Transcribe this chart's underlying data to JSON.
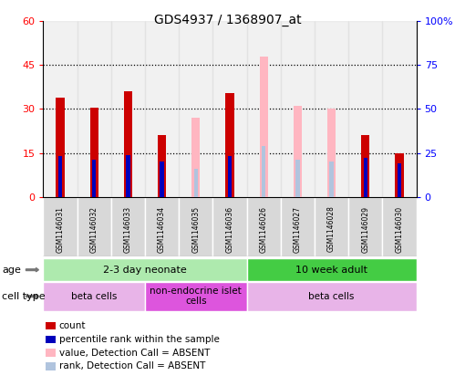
{
  "title": "GDS4937 / 1368907_at",
  "samples": [
    "GSM1146031",
    "GSM1146032",
    "GSM1146033",
    "GSM1146034",
    "GSM1146035",
    "GSM1146036",
    "GSM1146026",
    "GSM1146027",
    "GSM1146028",
    "GSM1146029",
    "GSM1146030"
  ],
  "count_values": [
    34,
    30.5,
    36,
    21,
    0,
    35.5,
    0,
    0,
    0,
    21,
    15
  ],
  "rank_values": [
    23,
    21,
    24,
    20,
    0,
    23,
    0,
    0,
    0,
    22,
    19
  ],
  "absent_value_values": [
    0,
    0,
    0,
    0,
    27,
    0,
    48,
    31,
    30,
    0,
    0
  ],
  "absent_rank_values": [
    0,
    0,
    0,
    0,
    16,
    0,
    29,
    21,
    20,
    0,
    0
  ],
  "ylim_left": [
    0,
    60
  ],
  "ylim_right": [
    0,
    100
  ],
  "yticks_left": [
    0,
    15,
    30,
    45,
    60
  ],
  "yticks_right": [
    0,
    25,
    50,
    75,
    100
  ],
  "ytick_labels_left": [
    "0",
    "15",
    "30",
    "45",
    "60"
  ],
  "ytick_labels_right": [
    "0",
    "25",
    "50",
    "75",
    "100%"
  ],
  "age_groups": [
    {
      "label": "2-3 day neonate",
      "start": 0,
      "end": 6,
      "color": "#aeeaae"
    },
    {
      "label": "10 week adult",
      "start": 6,
      "end": 11,
      "color": "#44cc44"
    }
  ],
  "cell_type_groups": [
    {
      "label": "beta cells",
      "start": 0,
      "end": 3,
      "color": "#e8b4e8"
    },
    {
      "label": "non-endocrine islet\ncells",
      "start": 3,
      "end": 6,
      "color": "#dd55dd"
    },
    {
      "label": "beta cells",
      "start": 6,
      "end": 11,
      "color": "#e8b4e8"
    }
  ],
  "count_color": "#cc0000",
  "rank_color": "#0000bb",
  "absent_value_color": "#ffb6c1",
  "absent_rank_color": "#b0c4de",
  "col_bg_color": "#d8d8d8",
  "bar_width": 0.25,
  "rank_bar_width": 0.12
}
